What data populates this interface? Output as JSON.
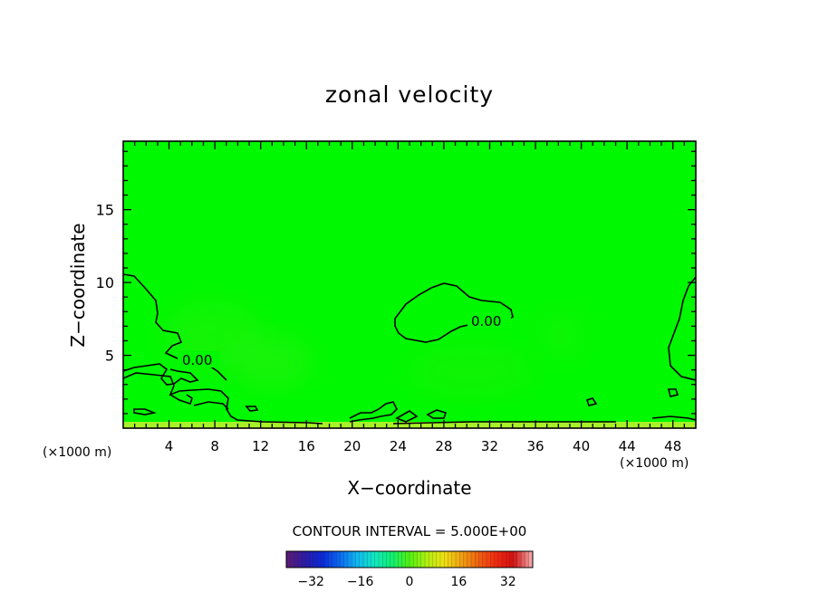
{
  "chart_data": {
    "type": "heatmap",
    "title": "zonal velocity",
    "xlabel": "X−coordinate",
    "ylabel": "Z−coordinate",
    "x_unit_left": "(×1000 m)",
    "x_unit_right": "(×1000 m)",
    "xlim": [
      0,
      50
    ],
    "ylim": [
      0,
      19.7
    ],
    "x_ticks": [
      4,
      8,
      12,
      16,
      20,
      24,
      28,
      32,
      36,
      40,
      44,
      48
    ],
    "x_tick_labels": [
      "4",
      "8",
      "12",
      "16",
      "20",
      "24",
      "28",
      "32",
      "36",
      "40",
      "44",
      "48"
    ],
    "y_ticks": [
      5,
      10,
      15
    ],
    "y_tick_labels": [
      "5",
      "10",
      "15"
    ],
    "field_value_approx": 0,
    "contour_labels": [
      {
        "text": "0.00",
        "x": 6.5,
        "z": 4.6
      },
      {
        "text": "0.00",
        "x": 31.8,
        "z": 7.1
      }
    ],
    "contour_interval_text": "CONTOUR INTERVAL = 5.000E+00",
    "colorbar": {
      "min": -40,
      "max": 40,
      "ticks": [
        -32,
        -16,
        0,
        16,
        32
      ],
      "tick_labels": [
        "−32",
        "−16",
        "0",
        "16",
        "32"
      ],
      "colors": [
        "#5a1a78",
        "#2a1aa8",
        "#0a2ad8",
        "#0a6af0",
        "#10b8f0",
        "#10e8c0",
        "#10f070",
        "#50f010",
        "#b0f010",
        "#f0e010",
        "#f0a010",
        "#f06010",
        "#f02a10",
        "#d01010",
        "#f0a0a0"
      ]
    }
  }
}
